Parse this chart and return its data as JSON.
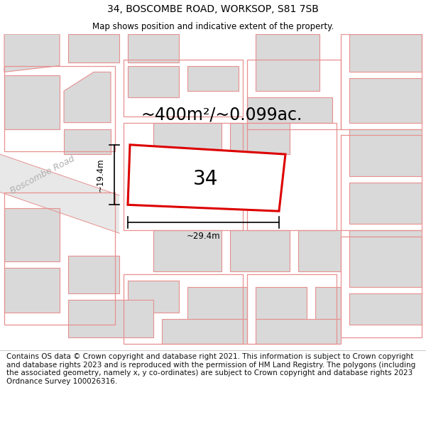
{
  "title": "34, BOSCOMBE ROAD, WORKSOP, S81 7SB",
  "subtitle": "Map shows position and indicative extent of the property.",
  "area_label": "~400m²/~0.099ac.",
  "number_label": "34",
  "width_label": "~29.4m",
  "height_label": "~19.4m",
  "road_label": "Boscombe Road",
  "footer": "Contains OS data © Crown copyright and database right 2021. This information is subject to Crown copyright and database rights 2023 and is reproduced with the permission of HM Land Registry. The polygons (including the associated geometry, namely x, y co-ordinates) are subject to Crown copyright and database rights 2023 Ordnance Survey 100026316.",
  "map_bg": "#f2f2f2",
  "building_color": "#d9d9d9",
  "outline_color": "#e89090",
  "red_poly_color": "#dd0000",
  "white": "#ffffff",
  "title_fontsize": 10,
  "subtitle_fontsize": 8.5,
  "area_fontsize": 17,
  "number_fontsize": 20,
  "road_fontsize": 9,
  "dim_fontsize": 8.5,
  "footer_fontsize": 7.5
}
